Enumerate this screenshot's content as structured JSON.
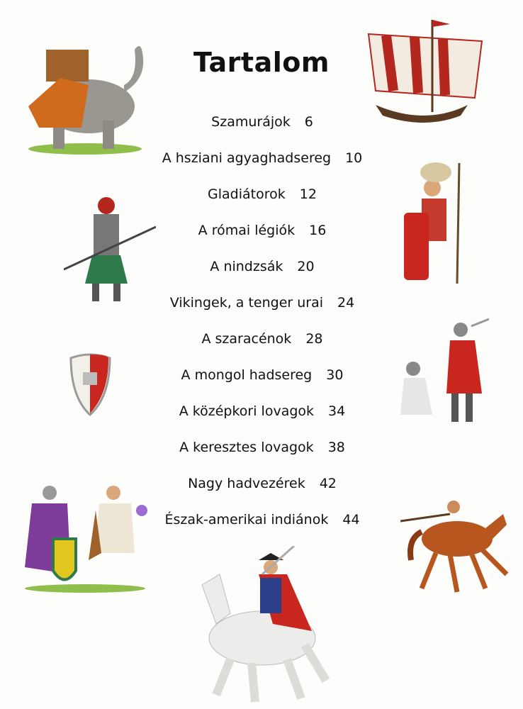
{
  "title": "Tartalom",
  "entries": [
    {
      "label": "Szamurájok",
      "page": "6"
    },
    {
      "label": "A hsziani agyaghadsereg",
      "page": "10"
    },
    {
      "label": "Gladiátorok",
      "page": "12"
    },
    {
      "label": "A római légiók",
      "page": "16"
    },
    {
      "label": "A nindzsák",
      "page": "20"
    },
    {
      "label": "Vikingek, a tenger urai",
      "page": "24"
    },
    {
      "label": "A szaracénok",
      "page": "28"
    },
    {
      "label": "A mongol hadsereg",
      "page": "30"
    },
    {
      "label": "A középkori lovagok",
      "page": "34"
    },
    {
      "label": "A keresztes lovagok",
      "page": "38"
    },
    {
      "label": "Nagy hadvezérek",
      "page": "42"
    },
    {
      "label": "Észak-amerikai indiánok",
      "page": "44"
    }
  ],
  "colors": {
    "background": "#fdfdfb",
    "text": "#111111",
    "red": "#b3271e",
    "grass": "#8fbf4a"
  }
}
